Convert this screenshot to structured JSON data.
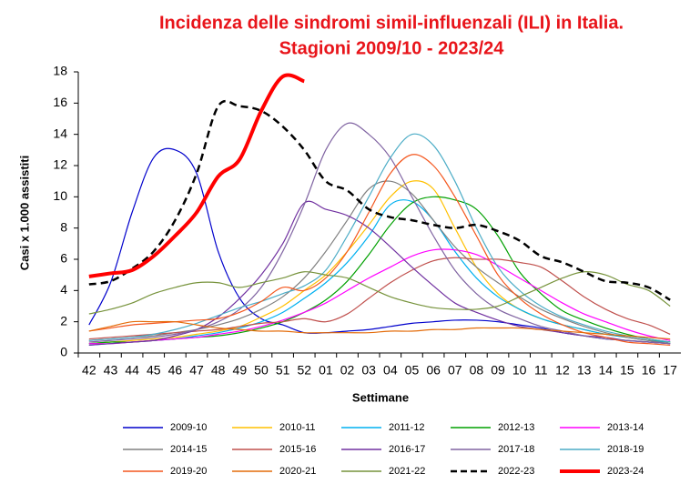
{
  "chart_data": {
    "type": "line",
    "title": "Incidenza delle sindromi simil-influenzali (ILI) in Italia.",
    "subtitle": "Stagioni 2009/10 - 2023/24",
    "x_label": "Settimane",
    "y_label": "Casi x 1.000 assistiti",
    "ylim": [
      0,
      18
    ],
    "yticks": [
      0,
      2,
      4,
      6,
      8,
      10,
      12,
      14,
      16,
      18
    ],
    "grid": false,
    "legend_position": "bottom",
    "categories": [
      "42",
      "43",
      "44",
      "45",
      "46",
      "47",
      "48",
      "49",
      "50",
      "51",
      "52",
      "01",
      "02",
      "03",
      "04",
      "05",
      "06",
      "07",
      "08",
      "09",
      "10",
      "11",
      "12",
      "13",
      "14",
      "15",
      "16",
      "17"
    ],
    "series": [
      {
        "name": "2009-10",
        "color": "#0000cc",
        "values": [
          1.8,
          4.5,
          9,
          12.5,
          13,
          11.5,
          6.5,
          3.5,
          2.2,
          1.8,
          1.3,
          1.3,
          1.4,
          1.5,
          1.7,
          1.9,
          2.0,
          2.1,
          2.1,
          2.0,
          1.8,
          1.6,
          1.3,
          1.1,
          0.9,
          0.8,
          0.7,
          0.6
        ]
      },
      {
        "name": "2010-11",
        "color": "#ffc000",
        "values": [
          0.6,
          0.7,
          0.8,
          0.9,
          1.0,
          1.2,
          1.4,
          1.7,
          2.3,
          3.0,
          4.0,
          5.0,
          6.5,
          8.2,
          10.0,
          11.0,
          10.5,
          8.0,
          5.5,
          3.8,
          2.8,
          2.2,
          1.8,
          1.5,
          1.2,
          1.0,
          0.8,
          0.7
        ]
      },
      {
        "name": "2011-12",
        "color": "#00b0f0",
        "values": [
          0.5,
          0.6,
          0.7,
          0.8,
          0.9,
          1.1,
          1.3,
          1.6,
          2.0,
          2.6,
          3.5,
          4.5,
          5.8,
          7.5,
          9.5,
          9.7,
          8.5,
          6.5,
          4.8,
          3.6,
          2.8,
          2.2,
          1.8,
          1.5,
          1.2,
          1.0,
          0.8,
          0.7
        ]
      },
      {
        "name": "2012-13",
        "color": "#00a000",
        "values": [
          0.6,
          0.7,
          0.7,
          0.8,
          0.9,
          1.0,
          1.1,
          1.3,
          1.6,
          2.0,
          2.6,
          3.4,
          4.6,
          6.3,
          8.2,
          9.6,
          10.0,
          9.8,
          9.2,
          7.5,
          5.2,
          3.8,
          2.7,
          2.1,
          1.6,
          1.2,
          0.9,
          0.7
        ]
      },
      {
        "name": "2013-14",
        "color": "#ff00ff",
        "values": [
          0.6,
          0.6,
          0.7,
          0.8,
          0.9,
          1.0,
          1.2,
          1.4,
          1.7,
          2.1,
          2.6,
          3.2,
          4.0,
          4.8,
          5.5,
          6.2,
          6.6,
          6.6,
          6.3,
          5.6,
          4.8,
          4.0,
          3.2,
          2.5,
          2.0,
          1.5,
          1.1,
          0.8
        ]
      },
      {
        "name": "2014-15",
        "color": "#808080",
        "values": [
          0.8,
          0.9,
          1.0,
          1.1,
          1.3,
          1.5,
          1.8,
          2.2,
          2.8,
          3.6,
          4.8,
          6.5,
          8.5,
          10.5,
          11.0,
          10.2,
          8.5,
          6.8,
          5.5,
          4.5,
          3.6,
          2.8,
          2.2,
          1.7,
          1.3,
          1.0,
          0.8,
          0.6
        ]
      },
      {
        "name": "2015-16",
        "color": "#c0504d",
        "values": [
          0.9,
          1.0,
          1.1,
          1.2,
          1.3,
          1.4,
          1.5,
          1.7,
          1.9,
          2.0,
          2.2,
          2.0,
          2.5,
          3.5,
          4.5,
          5.3,
          5.9,
          6.1,
          6.0,
          6.0,
          5.8,
          5.5,
          4.6,
          3.6,
          2.8,
          2.2,
          1.8,
          1.2
        ]
      },
      {
        "name": "2016-17",
        "color": "#7030a0",
        "values": [
          0.5,
          0.6,
          0.7,
          0.8,
          1.1,
          1.5,
          2.3,
          3.5,
          5.0,
          7.0,
          9.6,
          9.2,
          8.8,
          8.0,
          6.8,
          5.5,
          4.3,
          3.2,
          2.6,
          2.1,
          1.7,
          1.5,
          1.3,
          1.1,
          1.0,
          0.8,
          0.7,
          0.6
        ]
      },
      {
        "name": "2017-18",
        "color": "#8064a2",
        "values": [
          0.7,
          0.8,
          0.9,
          1.0,
          1.2,
          1.5,
          2.0,
          2.8,
          4.2,
          6.5,
          9.5,
          13.0,
          14.7,
          14.0,
          12.5,
          10.0,
          7.5,
          5.3,
          3.8,
          2.8,
          2.2,
          1.7,
          1.4,
          1.1,
          0.9,
          0.8,
          0.7,
          0.6
        ]
      },
      {
        "name": "2018-19",
        "color": "#4bacc6",
        "values": [
          0.8,
          0.9,
          1.0,
          1.2,
          1.5,
          1.9,
          2.4,
          2.9,
          3.3,
          3.8,
          4.3,
          5.3,
          7.5,
          10.0,
          12.5,
          14.0,
          13.3,
          11.0,
          8.0,
          5.5,
          4.0,
          3.0,
          2.3,
          1.8,
          1.4,
          1.1,
          0.9,
          0.7
        ]
      },
      {
        "name": "2019-20",
        "color": "#f4571e",
        "values": [
          1.4,
          1.6,
          1.8,
          1.9,
          2.0,
          2.1,
          2.2,
          2.6,
          3.3,
          4.2,
          4.0,
          4.8,
          6.5,
          9.0,
          11.5,
          12.7,
          12.0,
          10.0,
          7.5,
          5.0,
          3.5,
          2.5,
          1.8,
          1.3,
          1.0,
          0.7,
          0.6,
          0.5
        ]
      },
      {
        "name": "2020-21",
        "color": "#e46c0a",
        "values": [
          1.4,
          1.7,
          2.0,
          2.0,
          2.0,
          1.8,
          1.6,
          1.5,
          1.4,
          1.4,
          1.3,
          1.3,
          1.3,
          1.3,
          1.4,
          1.4,
          1.5,
          1.5,
          1.6,
          1.6,
          1.6,
          1.5,
          1.4,
          1.3,
          1.2,
          1.1,
          1.0,
          0.9
        ]
      },
      {
        "name": "2021-22",
        "color": "#77933c",
        "values": [
          2.5,
          2.8,
          3.2,
          3.8,
          4.2,
          4.5,
          4.5,
          4.2,
          4.5,
          4.8,
          5.2,
          5.0,
          4.8,
          4.2,
          3.6,
          3.2,
          2.9,
          2.8,
          2.8,
          3.0,
          3.6,
          4.2,
          4.8,
          5.2,
          5.0,
          4.4,
          4.0,
          3.0
        ]
      },
      {
        "name": "2022-23",
        "color": "#000000",
        "dashed": true,
        "values": [
          4.4,
          4.6,
          5.4,
          6.5,
          8.5,
          11.5,
          15.8,
          15.8,
          15.5,
          14.5,
          13.0,
          11.0,
          10.4,
          9.2,
          8.7,
          8.5,
          8.2,
          8.0,
          8.2,
          7.8,
          7.2,
          6.2,
          5.8,
          5.2,
          4.6,
          4.5,
          4.2,
          3.4
        ]
      },
      {
        "name": "2023-24",
        "color": "#ff0000",
        "bold": true,
        "values": [
          4.9,
          5.1,
          5.3,
          6.2,
          7.5,
          9.0,
          11.3,
          12.4,
          15.5,
          17.7,
          17.4,
          null,
          null,
          null,
          null,
          null,
          null,
          null,
          null,
          null,
          null,
          null,
          null,
          null,
          null,
          null,
          null,
          null
        ]
      }
    ]
  }
}
